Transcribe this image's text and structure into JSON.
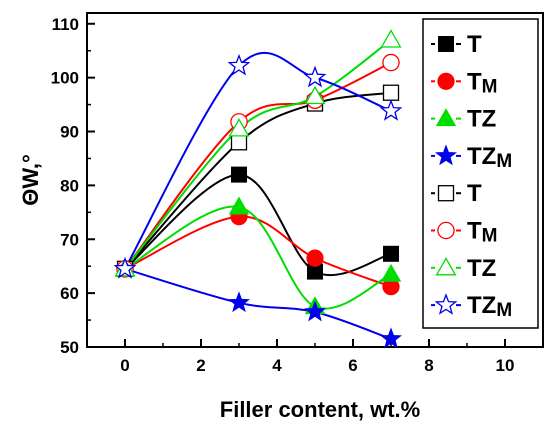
{
  "chart_data": {
    "type": "scatter",
    "title": "",
    "xlabel": "Filler content, wt.%",
    "ylabel": "ΘW,°",
    "xlim": [
      -1,
      11
    ],
    "ylim": [
      50,
      112
    ],
    "xticks": [
      0,
      2,
      4,
      6,
      8,
      10
    ],
    "yticks": [
      50,
      60,
      70,
      80,
      90,
      100,
      110
    ],
    "grid": false,
    "legend_position": "right",
    "series": [
      {
        "name": "T",
        "label_base": "T",
        "label_sub": "",
        "marker": "square",
        "filled": true,
        "color": "#000000",
        "x": [
          0,
          3,
          5,
          7
        ],
        "y": [
          64.5,
          82,
          64,
          67.3
        ]
      },
      {
        "name": "TM",
        "label_base": "T",
        "label_sub": "M",
        "marker": "circle",
        "filled": true,
        "color": "#ff0000",
        "x": [
          0,
          3,
          5,
          7
        ],
        "y": [
          64.5,
          74.2,
          66.5,
          61.2
        ]
      },
      {
        "name": "TZ",
        "label_base": "TZ",
        "label_sub": "",
        "marker": "triangle",
        "filled": true,
        "color": "#00dd00",
        "x": [
          0,
          3,
          5,
          7
        ],
        "y": [
          64.5,
          76,
          57.5,
          63.5
        ]
      },
      {
        "name": "TZM",
        "label_base": "TZ",
        "label_sub": "M",
        "marker": "star",
        "filled": true,
        "color": "#0000ee",
        "x": [
          0,
          3,
          5,
          7
        ],
        "y": [
          64.5,
          58.2,
          56.5,
          51.5
        ]
      },
      {
        "name": "T",
        "label_base": "T",
        "label_sub": "",
        "marker": "square",
        "filled": false,
        "color": "#000000",
        "x": [
          0,
          3,
          5,
          7
        ],
        "y": [
          64.5,
          88,
          95.2,
          97.2
        ]
      },
      {
        "name": "TM",
        "label_base": "T",
        "label_sub": "M",
        "marker": "circle",
        "filled": false,
        "color": "#ff0000",
        "x": [
          0,
          3,
          5,
          7
        ],
        "y": [
          64.5,
          91.8,
          95.8,
          102.8
        ]
      },
      {
        "name": "TZ",
        "label_base": "TZ",
        "label_sub": "",
        "marker": "triangle",
        "filled": false,
        "color": "#00dd00",
        "x": [
          0,
          3,
          5,
          7
        ],
        "y": [
          64.5,
          90.5,
          96.5,
          107
        ]
      },
      {
        "name": "TZM",
        "label_base": "TZ",
        "label_sub": "M",
        "marker": "star",
        "filled": false,
        "color": "#0000ee",
        "x": [
          0,
          3,
          5,
          7
        ],
        "y": [
          64.5,
          102.2,
          100,
          93.8
        ]
      }
    ]
  }
}
